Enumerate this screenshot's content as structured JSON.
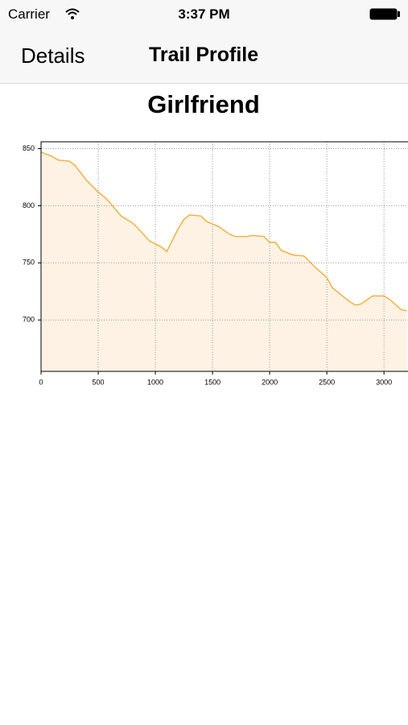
{
  "status_bar": {
    "carrier": "Carrier",
    "time": "3:37 PM"
  },
  "nav_bar": {
    "back": "Details",
    "title": "Trail Profile"
  },
  "chart_data": {
    "type": "area",
    "title": "Girlfriend",
    "x": [
      0,
      100,
      150,
      250,
      300,
      400,
      500,
      550,
      600,
      700,
      800,
      850,
      950,
      1050,
      1100,
      1200,
      1250,
      1300,
      1400,
      1450,
      1550,
      1650,
      1700,
      1800,
      1850,
      1950,
      2000,
      2050,
      2100,
      2200,
      2300,
      2400,
      2500,
      2550,
      2650,
      2700,
      2750,
      2800,
      2900,
      3000,
      3050,
      3150,
      3200
    ],
    "values": [
      847,
      843,
      840,
      839,
      835,
      822,
      812,
      808,
      803,
      791,
      785,
      780,
      769,
      764,
      760,
      780,
      788,
      792,
      791,
      786,
      782,
      775,
      773,
      773,
      774,
      773,
      768,
      768,
      761,
      757,
      756,
      746,
      737,
      728,
      720,
      716,
      713,
      714,
      721,
      721,
      718,
      709,
      708
    ],
    "color": "#f3b13f",
    "fill_color": "#fdf2e4",
    "xlim": [
      0,
      3210
    ],
    "ylim": [
      655,
      856
    ],
    "xticks": [
      0,
      500,
      1000,
      1500,
      2000,
      2500,
      3000
    ],
    "yticks": [
      700,
      750,
      800,
      850
    ],
    "grid": true
  }
}
